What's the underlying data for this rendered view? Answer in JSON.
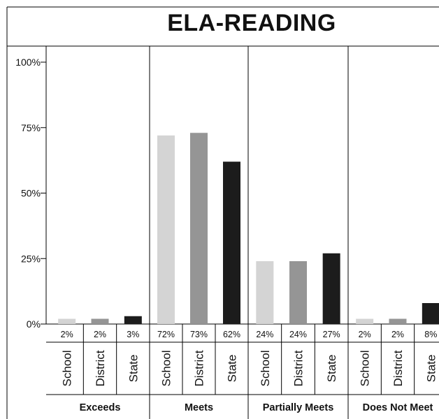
{
  "chart_data": {
    "type": "bar",
    "title": "ELA-READING",
    "ylim": [
      0,
      100
    ],
    "y_ticks": [
      "0%",
      "25%",
      "50%",
      "75%",
      "100%"
    ],
    "y_tick_values": [
      0,
      25,
      50,
      75,
      100
    ],
    "categories": [
      "Exceeds",
      "Meets",
      "Partially Meets",
      "Does Not Meet"
    ],
    "series": [
      {
        "name": "School",
        "values": [
          2,
          72,
          24,
          2
        ],
        "labels": [
          "2%",
          "72%",
          "24%",
          "2%"
        ],
        "color": "#d4d4d4"
      },
      {
        "name": "District",
        "values": [
          2,
          73,
          24,
          2
        ],
        "labels": [
          "2%",
          "73%",
          "24%",
          "2%"
        ],
        "color": "#959595"
      },
      {
        "name": "State",
        "values": [
          3,
          62,
          27,
          8
        ],
        "labels": [
          "3%",
          "62%",
          "27%",
          "8%"
        ],
        "color": "#1c1c1c"
      }
    ],
    "grid": false,
    "legend": "none"
  }
}
